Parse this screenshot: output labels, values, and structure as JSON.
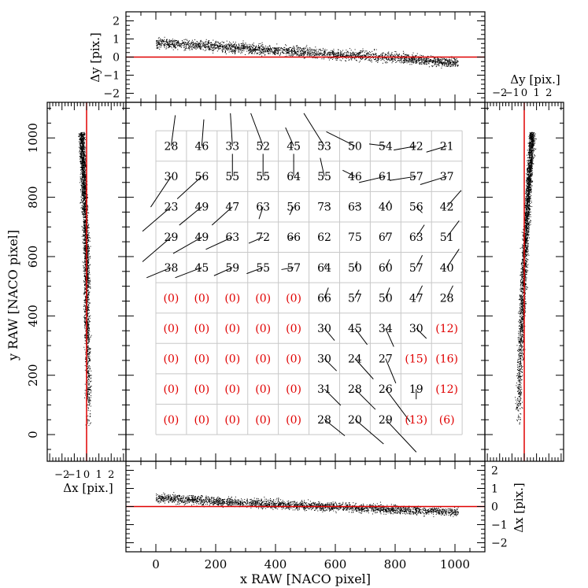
{
  "chart_data": {
    "type": "scatter",
    "title": "",
    "colors": {
      "ink": "#000000",
      "zero_line": "#e00000",
      "grid": "#c8c8c8",
      "empty_cell": "#e00000"
    },
    "main_panel": {
      "xlabel": "x RAW [NACO pixel]",
      "ylabel": "y RAW [NACO pixel]",
      "xlim": [
        -100,
        1100
      ],
      "ylim": [
        -90,
        1120
      ],
      "x_ticks": [
        "0",
        "200",
        "400",
        "600",
        "800",
        "1000"
      ],
      "y_ticks": [
        "0",
        "200",
        "400",
        "600",
        "800",
        "1000"
      ],
      "grid": {
        "cols": 10,
        "rows": 10,
        "x0": 0,
        "y0": 0,
        "cell": 102.4
      },
      "cell_counts": [
        [
          "28",
          "46",
          "33",
          "52",
          "45",
          "53",
          "50",
          "54",
          "42",
          "21"
        ],
        [
          "30",
          "56",
          "55",
          "55",
          "64",
          "55",
          "46",
          "61",
          "57",
          "37"
        ],
        [
          "23",
          "49",
          "47",
          "63",
          "56",
          "73",
          "63",
          "40",
          "56",
          "42"
        ],
        [
          "29",
          "49",
          "63",
          "72",
          "66",
          "62",
          "75",
          "67",
          "63",
          "51"
        ],
        [
          "38",
          "45",
          "59",
          "55",
          "57",
          "64",
          "50",
          "60",
          "57",
          "40"
        ],
        [
          "(0)",
          "(0)",
          "(0)",
          "(0)",
          "(0)",
          "66",
          "57",
          "50",
          "47",
          "28"
        ],
        [
          "(0)",
          "(0)",
          "(0)",
          "(0)",
          "(0)",
          "30",
          "45",
          "34",
          "30",
          "(12)"
        ],
        [
          "(0)",
          "(0)",
          "(0)",
          "(0)",
          "(0)",
          "30",
          "24",
          "27",
          "(15)",
          "(16)"
        ],
        [
          "(0)",
          "(0)",
          "(0)",
          "(0)",
          "(0)",
          "31",
          "28",
          "26",
          "19",
          "(12)"
        ],
        [
          "(0)",
          "(0)",
          "(0)",
          "(0)",
          "(0)",
          "28",
          "20",
          "29",
          "(13)",
          "(6)"
        ]
      ],
      "vectors_dxdy": [
        [
          [
            0.2,
            1.5
          ],
          [
            0.1,
            1.3
          ],
          [
            -0.1,
            1.6
          ],
          [
            -0.6,
            1.6
          ],
          [
            -0.4,
            0.9
          ],
          [
            -1.0,
            1.6
          ],
          [
            -1.4,
            0.7
          ],
          [
            -0.8,
            0.1
          ],
          [
            -1.1,
            -0.2
          ],
          [
            -1.0,
            -0.3
          ]
        ],
        [
          [
            -1.0,
            -1.5
          ],
          [
            -1.2,
            -1.1
          ],
          [
            0.0,
            1.1
          ],
          [
            0.0,
            1.1
          ],
          [
            0.0,
            1.1
          ],
          [
            -0.2,
            0.9
          ],
          [
            -0.6,
            0.3
          ],
          [
            -1.3,
            -0.3
          ],
          [
            -1.3,
            -0.2
          ],
          [
            -1.3,
            -0.4
          ]
        ],
        [
          [
            -1.4,
            -1.2
          ],
          [
            -1.1,
            -0.9
          ],
          [
            -1.0,
            -0.9
          ],
          [
            -0.2,
            -0.6
          ],
          [
            -0.2,
            -0.4
          ],
          [
            0.2,
            0.1
          ],
          [
            0.2,
            0.1
          ],
          [
            0.2,
            0.3
          ],
          [
            0.3,
            -0.3
          ],
          [
            0.7,
            0.8
          ]
        ],
        [
          [
            -1.4,
            -1.2
          ],
          [
            -1.4,
            -0.8
          ],
          [
            -1.3,
            -0.6
          ],
          [
            -0.7,
            -0.3
          ],
          [
            -0.2,
            -0.1
          ],
          [
            0.0,
            0.0
          ],
          [
            0.0,
            0.0
          ],
          [
            0.1,
            0.2
          ],
          [
            0.4,
            0.6
          ],
          [
            0.6,
            0.8
          ]
        ],
        [
          [
            -1.2,
            -0.5
          ],
          [
            -1.3,
            -0.5
          ],
          [
            -0.9,
            -0.4
          ],
          [
            -0.8,
            -0.3
          ],
          [
            -0.6,
            -0.1
          ],
          [
            0.1,
            0.2
          ],
          [
            0.1,
            0.3
          ],
          [
            0.2,
            0.4
          ],
          [
            0.3,
            0.6
          ],
          [
            0.6,
            0.9
          ]
        ],
        [
          null,
          null,
          null,
          null,
          null,
          [
            0.2,
            0.5
          ],
          [
            0.2,
            0.4
          ],
          [
            0.2,
            0.5
          ],
          [
            0.3,
            0.6
          ],
          [
            0.3,
            0.6
          ]
        ],
        [
          null,
          null,
          null,
          null,
          null,
          [
            0.5,
            -0.6
          ],
          [
            0.6,
            -0.8
          ],
          [
            0.4,
            -0.9
          ],
          [
            0.5,
            -0.5
          ],
          null
        ],
        [
          null,
          null,
          null,
          null,
          null,
          [
            0.6,
            -0.6
          ],
          [
            0.9,
            -1.0
          ],
          [
            0.5,
            -1.2
          ],
          null,
          null
        ],
        [
          null,
          null,
          null,
          null,
          null,
          [
            0.8,
            -0.8
          ],
          [
            1.0,
            -1.0
          ],
          [
            1.2,
            -1.6
          ],
          [
            0.0,
            -0.5
          ],
          null
        ],
        [
          null,
          null,
          null,
          null,
          null,
          [
            1.0,
            -0.8
          ],
          [
            1.4,
            -1.2
          ],
          [
            1.5,
            -1.6
          ],
          null,
          null
        ]
      ]
    },
    "top_panel": {
      "ylabel": "Δy [pix.]",
      "ylim": [
        -2.5,
        2.5
      ],
      "y_ticks": [
        "2",
        "1",
        "0",
        "−1",
        "−2"
      ],
      "series": "Δy vs x RAW",
      "trend_x": [
        0,
        200,
        400,
        600,
        800,
        1000
      ],
      "trend_y": [
        0.8,
        0.6,
        0.4,
        0.15,
        0.0,
        -0.3
      ],
      "spread": 0.4
    },
    "bottom_panel": {
      "ylabel": "Δx [pix.]",
      "ylim": [
        -2.5,
        2.5
      ],
      "y_ticks": [
        "2",
        "1",
        "0",
        "−1",
        "−2"
      ],
      "series": "Δx vs x RAW",
      "trend_x": [
        0,
        200,
        400,
        600,
        800,
        1000
      ],
      "trend_y": [
        0.5,
        0.3,
        0.15,
        0.0,
        -0.15,
        -0.3
      ],
      "spread": 0.35
    },
    "left_panel": {
      "xlabel": "Δx [pix.]",
      "xlim": [
        -3.2,
        3.2
      ],
      "x_ticks": [
        "−2",
        "−1",
        "0",
        "1",
        "2"
      ],
      "series": "y RAW vs Δx",
      "trend_y": [
        0,
        200,
        400,
        600,
        800,
        1000
      ],
      "trend_x": [
        0.1,
        0.1,
        0.0,
        0.0,
        -0.2,
        -0.4
      ],
      "spread": 0.35
    },
    "right_panel": {
      "xlabel": "Δy [pix.]",
      "xlim": [
        -3.2,
        3.2
      ],
      "x_ticks": [
        "−2",
        "−1",
        "0",
        "1",
        "2"
      ],
      "series": "y RAW vs Δy",
      "trend_y": [
        0,
        200,
        400,
        600,
        800,
        1000
      ],
      "trend_x": [
        -0.5,
        -0.4,
        -0.2,
        0.0,
        0.3,
        0.6
      ],
      "spread": 0.35
    }
  }
}
